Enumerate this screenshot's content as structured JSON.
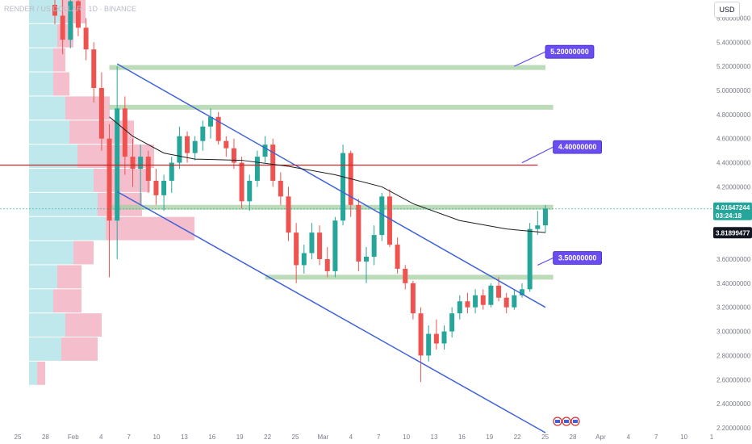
{
  "header": {
    "symbol": "RENDER / US DOLLAR · 1D · BINANCE",
    "currency": "USD"
  },
  "colors": {
    "up": "#26a69a",
    "down": "#ef5350",
    "channel": "#3f62d9",
    "zone": "#a5cfa0",
    "resistance": "#c0292b",
    "ma": "#1e1e1e",
    "callout": "#6a4cf0",
    "vp_up": "#bfe8ec",
    "vp_down": "#f2b3c4",
    "price_badge": "#26a69a",
    "ma_badge": "#131722"
  },
  "chart_data": {
    "type": "candlestick",
    "title": "RENDER / US DOLLAR · 1D · BINANCE",
    "y_axis": {
      "ticks": [
        "5.60000000",
        "5.40000000",
        "5.20000000",
        "5.00000000",
        "4.80000000",
        "4.60000000",
        "4.40000000",
        "4.20000000",
        "3.80000000",
        "3.60000000",
        "3.40000000",
        "3.20000000",
        "3.00000000",
        "2.80000000",
        "2.60000000",
        "2.40000000",
        "2.20000000"
      ],
      "range": [
        2.2,
        5.75
      ]
    },
    "x_axis": {
      "ticks": [
        "25",
        "28",
        "Feb",
        "4",
        "7",
        "10",
        "13",
        "16",
        "19",
        "22",
        "25",
        "Mar",
        "4",
        "7",
        "10",
        "13",
        "16",
        "19",
        "22",
        "25",
        "28",
        "Apr",
        "4",
        "7",
        "10",
        "1"
      ]
    },
    "ohlc": [
      [
        5.71,
        5.82,
        5.55,
        5.62
      ],
      [
        5.62,
        5.75,
        5.3,
        5.42
      ],
      [
        5.42,
        5.78,
        5.35,
        5.74
      ],
      [
        5.74,
        5.8,
        5.45,
        5.52
      ],
      [
        5.52,
        5.6,
        5.25,
        5.34
      ],
      [
        5.34,
        5.4,
        4.9,
        5.02
      ],
      [
        5.02,
        5.15,
        4.5,
        4.6
      ],
      [
        4.6,
        4.72,
        3.45,
        3.92
      ],
      [
        3.92,
        5.2,
        3.6,
        4.85
      ],
      [
        4.85,
        4.95,
        4.3,
        4.45
      ],
      [
        4.45,
        4.6,
        4.2,
        4.35
      ],
      [
        4.35,
        4.55,
        4.05,
        4.45
      ],
      [
        4.45,
        4.5,
        4.15,
        4.25
      ],
      [
        4.25,
        4.35,
        4.05,
        4.13
      ],
      [
        4.13,
        4.3,
        4.0,
        4.25
      ],
      [
        4.25,
        4.45,
        4.15,
        4.4
      ],
      [
        4.4,
        4.7,
        4.35,
        4.62
      ],
      [
        4.62,
        4.66,
        4.4,
        4.48
      ],
      [
        4.48,
        4.62,
        4.42,
        4.58
      ],
      [
        4.58,
        4.75,
        4.5,
        4.7
      ],
      [
        4.7,
        4.85,
        4.6,
        4.78
      ],
      [
        4.78,
        4.82,
        4.55,
        4.58
      ],
      [
        4.58,
        4.62,
        4.45,
        4.52
      ],
      [
        4.52,
        4.6,
        4.35,
        4.4
      ],
      [
        4.4,
        4.45,
        4.02,
        4.08
      ],
      [
        4.08,
        4.3,
        4.0,
        4.25
      ],
      [
        4.25,
        4.5,
        4.2,
        4.45
      ],
      [
        4.45,
        4.62,
        4.4,
        4.55
      ],
      [
        4.55,
        4.6,
        4.2,
        4.25
      ],
      [
        4.25,
        4.32,
        4.05,
        4.12
      ],
      [
        4.12,
        4.2,
        3.75,
        3.82
      ],
      [
        3.82,
        3.9,
        3.4,
        3.55
      ],
      [
        3.55,
        3.72,
        3.48,
        3.65
      ],
      [
        3.65,
        3.9,
        3.6,
        3.82
      ],
      [
        3.82,
        3.88,
        3.55,
        3.6
      ],
      [
        3.6,
        3.7,
        3.45,
        3.5
      ],
      [
        3.5,
        3.95,
        3.45,
        3.92
      ],
      [
        3.92,
        4.55,
        3.88,
        4.48
      ],
      [
        4.48,
        4.5,
        3.95,
        4.05
      ],
      [
        4.05,
        4.1,
        3.5,
        3.58
      ],
      [
        3.58,
        3.7,
        3.4,
        3.62
      ],
      [
        3.62,
        3.88,
        3.55,
        3.8
      ],
      [
        3.8,
        4.15,
        3.75,
        4.12
      ],
      [
        4.12,
        4.18,
        3.7,
        3.72
      ],
      [
        3.72,
        3.78,
        3.48,
        3.52
      ],
      [
        3.52,
        3.55,
        3.35,
        3.4
      ],
      [
        3.4,
        3.42,
        3.1,
        3.15
      ],
      [
        3.15,
        3.2,
        2.58,
        2.8
      ],
      [
        2.8,
        3.05,
        2.75,
        2.98
      ],
      [
        2.98,
        3.1,
        2.85,
        2.9
      ],
      [
        2.9,
        3.05,
        2.85,
        3.0
      ],
      [
        3.0,
        3.2,
        2.95,
        3.15
      ],
      [
        3.15,
        3.3,
        3.1,
        3.25
      ],
      [
        3.25,
        3.32,
        3.15,
        3.2
      ],
      [
        3.2,
        3.35,
        3.15,
        3.3
      ],
      [
        3.3,
        3.35,
        3.18,
        3.22
      ],
      [
        3.22,
        3.4,
        3.2,
        3.38
      ],
      [
        3.38,
        3.45,
        3.25,
        3.28
      ],
      [
        3.28,
        3.32,
        3.15,
        3.2
      ],
      [
        3.2,
        3.35,
        3.18,
        3.3
      ],
      [
        3.3,
        3.4,
        3.28,
        3.35
      ],
      [
        3.35,
        3.9,
        3.33,
        3.85
      ],
      [
        3.85,
        4.0,
        3.8,
        3.88
      ],
      [
        3.88,
        4.05,
        3.82,
        4.02
      ]
    ],
    "moving_average": [
      [
        7,
        4.78
      ],
      [
        10,
        4.62
      ],
      [
        14,
        4.48
      ],
      [
        18,
        4.43
      ],
      [
        24,
        4.42
      ],
      [
        30,
        4.37
      ],
      [
        36,
        4.3
      ],
      [
        42,
        4.2
      ],
      [
        46,
        4.06
      ],
      [
        52,
        3.92
      ],
      [
        58,
        3.85
      ],
      [
        63,
        3.82
      ]
    ],
    "channel_upper": [
      [
        8,
        5.22
      ],
      [
        63,
        3.2
      ]
    ],
    "channel_lower": [
      [
        8,
        4.16
      ],
      [
        63,
        2.16
      ]
    ],
    "zones": [
      {
        "price": 5.19,
        "from": 7,
        "to": 63
      },
      {
        "price": 4.86,
        "from": 7,
        "to": 64
      },
      {
        "price": 4.03,
        "from": 7,
        "to": 64
      },
      {
        "price": 3.45,
        "from": 27,
        "to": 64
      }
    ],
    "resistance_line": {
      "price": 4.38,
      "from": -8,
      "to": 62
    },
    "callouts": [
      {
        "label": "5.20000000",
        "from": [
          59,
          5.2
        ],
        "to": [
          63,
          5.32
        ]
      },
      {
        "label": "4.40000000",
        "from": [
          60,
          4.4
        ],
        "to": [
          64,
          4.53
        ]
      },
      {
        "label": "3.50000000",
        "from": [
          62,
          3.55
        ],
        "to": [
          64,
          3.61
        ]
      }
    ],
    "current_price": {
      "value": "4.01647244",
      "countdown": "03:24:18"
    },
    "ma_value": {
      "value": "3.81899477"
    },
    "volume_profile": [
      {
        "price": 5.65,
        "up": 40,
        "down": 30
      },
      {
        "price": 5.45,
        "up": 35,
        "down": 20
      },
      {
        "price": 5.25,
        "up": 30,
        "down": 15
      },
      {
        "price": 5.05,
        "up": 30,
        "down": 20
      },
      {
        "price": 4.85,
        "up": 45,
        "down": 55
      },
      {
        "price": 4.65,
        "up": 50,
        "down": 80
      },
      {
        "price": 4.45,
        "up": 60,
        "down": 95
      },
      {
        "price": 4.25,
        "up": 80,
        "down": 70
      },
      {
        "price": 4.05,
        "up": 85,
        "down": 55
      },
      {
        "price": 3.85,
        "up": 95,
        "down": 110
      },
      {
        "price": 3.65,
        "up": 55,
        "down": 25
      },
      {
        "price": 3.45,
        "up": 35,
        "down": 30
      },
      {
        "price": 3.25,
        "up": 30,
        "down": 35
      },
      {
        "price": 3.05,
        "up": 45,
        "down": 45
      },
      {
        "price": 2.85,
        "up": 40,
        "down": 45
      },
      {
        "price": 2.65,
        "up": 10,
        "down": 10
      }
    ]
  }
}
